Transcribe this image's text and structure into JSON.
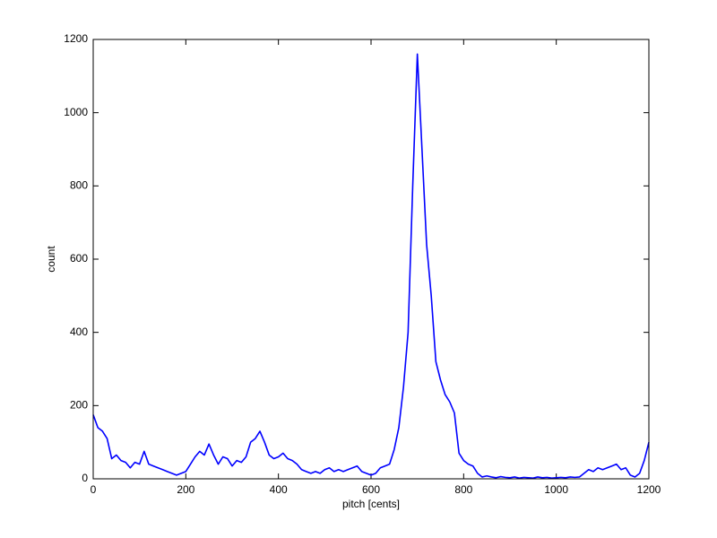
{
  "chart_data": {
    "type": "line",
    "xlabel": "pitch [cents]",
    "ylabel": "count",
    "x": [
      0,
      10,
      20,
      30,
      40,
      50,
      60,
      70,
      80,
      90,
      100,
      110,
      120,
      130,
      140,
      150,
      160,
      170,
      180,
      190,
      200,
      210,
      220,
      230,
      240,
      250,
      260,
      270,
      280,
      290,
      300,
      310,
      320,
      330,
      340,
      350,
      360,
      370,
      380,
      390,
      400,
      410,
      420,
      430,
      440,
      450,
      460,
      470,
      480,
      490,
      500,
      510,
      520,
      530,
      540,
      550,
      560,
      570,
      580,
      590,
      600,
      610,
      620,
      630,
      640,
      650,
      660,
      670,
      680,
      690,
      700,
      710,
      720,
      730,
      740,
      750,
      760,
      770,
      780,
      790,
      800,
      810,
      820,
      830,
      840,
      850,
      860,
      870,
      880,
      890,
      900,
      910,
      920,
      930,
      940,
      950,
      960,
      970,
      980,
      990,
      1000,
      1010,
      1020,
      1030,
      1040,
      1050,
      1060,
      1070,
      1080,
      1090,
      1100,
      1110,
      1120,
      1130,
      1140,
      1150,
      1160,
      1170,
      1180,
      1190,
      1200
    ],
    "series": [
      {
        "name": "count",
        "color": "#0000ff",
        "values": [
          175,
          140,
          130,
          110,
          55,
          65,
          50,
          45,
          30,
          45,
          40,
          75,
          40,
          35,
          30,
          25,
          20,
          15,
          10,
          15,
          20,
          40,
          60,
          75,
          65,
          95,
          65,
          40,
          60,
          55,
          35,
          50,
          45,
          60,
          100,
          110,
          130,
          100,
          65,
          55,
          60,
          70,
          55,
          50,
          40,
          25,
          20,
          15,
          20,
          15,
          25,
          30,
          20,
          25,
          20,
          25,
          30,
          35,
          20,
          15,
          10,
          15,
          30,
          35,
          40,
          80,
          140,
          250,
          400,
          800,
          1160,
          900,
          640,
          500,
          320,
          270,
          230,
          210,
          180,
          70,
          50,
          40,
          35,
          15,
          5,
          8,
          5,
          3,
          6,
          4,
          3,
          5,
          2,
          4,
          3,
          2,
          5,
          3,
          4,
          2,
          3,
          4,
          3,
          5,
          4,
          5,
          15,
          25,
          20,
          30,
          25,
          30,
          35,
          40,
          25,
          30,
          10,
          5,
          15,
          50,
          100
        ]
      }
    ],
    "xlim": [
      0,
      1200
    ],
    "ylim": [
      0,
      1200
    ],
    "xticks": [
      0,
      200,
      400,
      600,
      800,
      1000,
      1200
    ],
    "yticks": [
      0,
      200,
      400,
      600,
      800,
      1000,
      1200
    ]
  }
}
